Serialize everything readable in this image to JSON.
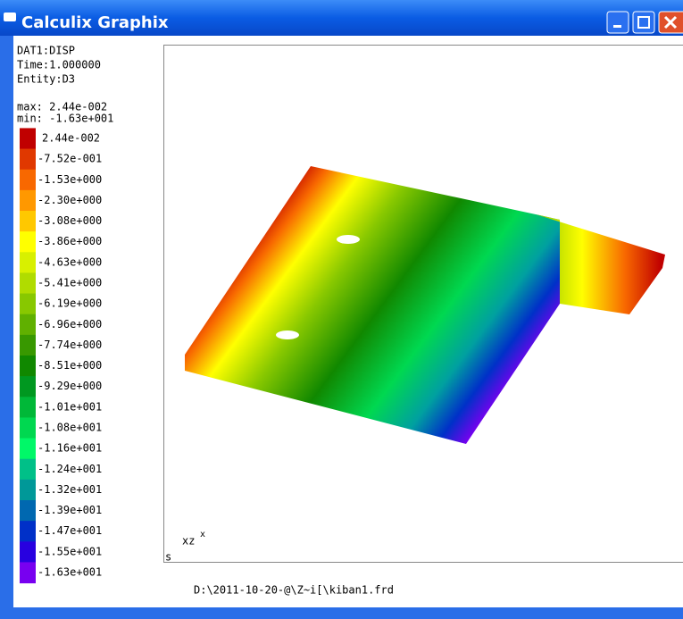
{
  "window": {
    "title": "Calculix Graphix"
  },
  "info": [
    "DAT1:DISP",
    "Time:1.000000",
    "Entity:D3"
  ],
  "range": [
    "max: 2.44e-002",
    "min: -1.63e+001"
  ],
  "legend": {
    "labels": [
      "2.44e-002",
      "-7.52e-001",
      "-1.53e+000",
      "-2.30e+000",
      "-3.08e+000",
      "-3.86e+000",
      "-4.63e+000",
      "-5.41e+000",
      "-6.19e+000",
      "-6.96e+000",
      "-7.74e+000",
      "-8.51e+000",
      "-9.29e+000",
      "-1.01e+001",
      "-1.08e+001",
      "-1.16e+001",
      "-1.24e+001",
      "-1.32e+001",
      "-1.39e+001",
      "-1.47e+001",
      "-1.55e+001",
      "-1.63e+001"
    ],
    "colors": [
      "#c00000",
      "#e03800",
      "#f86800",
      "#ff9800",
      "#ffc800",
      "#ffff00",
      "#d8f000",
      "#b0dc00",
      "#88c800",
      "#60b000",
      "#389800",
      "#108800",
      "#009820",
      "#00b838",
      "#00d850",
      "#00f868",
      "#00c088",
      "#009898",
      "#0068b0",
      "#0030c8",
      "#2800e0",
      "#7800f0"
    ]
  },
  "axes": {
    "vertical": "xz",
    "horizontal": "x"
  },
  "corner": "s",
  "footer": "D:\\2011-10-20-@\\Z~i[\\kiban1.frd"
}
